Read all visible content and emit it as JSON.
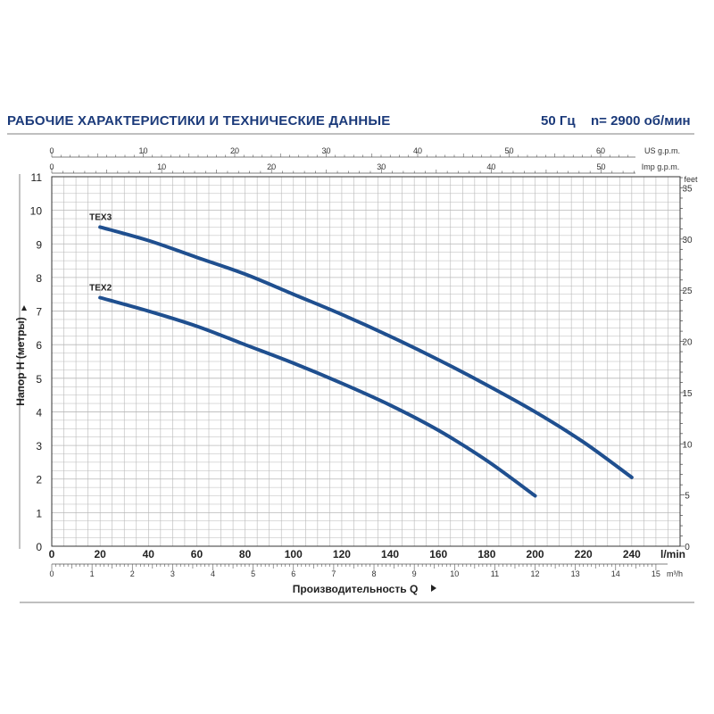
{
  "header": {
    "title": "РАБОЧИЕ ХАРАКТЕРИСТИКИ И ТЕХНИЧЕСКИЕ ДАННЫЕ",
    "frequency": "50 Гц",
    "speed": "n= 2900 об/мин"
  },
  "colors": {
    "curve": "#1f4f8f",
    "grid": "#b8b8b8",
    "frame": "#333333"
  },
  "chart_data": {
    "type": "line",
    "xlabel": "Производительность Q",
    "ylabel": "Напор H (метры)",
    "x_unit": "l/min",
    "xlim": [
      0,
      260
    ],
    "ylim": [
      0,
      11
    ],
    "grid": true,
    "series": [
      {
        "name": "TEX3",
        "x": [
          20,
          40,
          60,
          80,
          100,
          120,
          140,
          160,
          180,
          200,
          220,
          240
        ],
        "y": [
          9.5,
          9.1,
          8.6,
          8.1,
          7.5,
          6.9,
          6.25,
          5.55,
          4.8,
          4.0,
          3.1,
          2.05
        ]
      },
      {
        "name": "TEX2",
        "x": [
          20,
          40,
          60,
          80,
          100,
          120,
          140,
          160,
          180,
          200
        ],
        "y": [
          7.4,
          7.0,
          6.55,
          6.0,
          5.45,
          4.85,
          4.2,
          3.45,
          2.55,
          1.5
        ]
      }
    ],
    "axes": {
      "left": {
        "label": "Напор H (метры)",
        "ticks": [
          "0",
          "1",
          "2",
          "3",
          "4",
          "5",
          "6",
          "7",
          "8",
          "9",
          "10",
          "11"
        ],
        "values": [
          0,
          1,
          2,
          3,
          4,
          5,
          6,
          7,
          8,
          9,
          10,
          11
        ]
      },
      "right": {
        "unit": "feet",
        "ticks": [
          "0",
          "5",
          "10",
          "15",
          "20",
          "25",
          "30",
          "35"
        ],
        "values": [
          0,
          5,
          10,
          15,
          20,
          25,
          30,
          35
        ]
      },
      "bottom": {
        "unit": "l/min",
        "ticks": [
          "0",
          "20",
          "40",
          "60",
          "80",
          "100",
          "120",
          "140",
          "160",
          "180",
          "200",
          "220",
          "240"
        ],
        "values": [
          0,
          20,
          40,
          60,
          80,
          100,
          120,
          140,
          160,
          180,
          200,
          220,
          240
        ]
      },
      "bottom2": {
        "unit": "m³/h",
        "ticks": [
          "0",
          "1",
          "2",
          "3",
          "4",
          "5",
          "6",
          "7",
          "8",
          "9",
          "10",
          "11",
          "12",
          "13",
          "14",
          "15"
        ],
        "values": [
          0,
          1,
          2,
          3,
          4,
          5,
          6,
          7,
          8,
          9,
          10,
          11,
          12,
          13,
          14,
          15
        ]
      },
      "top1": {
        "unit": "US g.p.m.",
        "ticks": [
          "0",
          "10",
          "20",
          "30",
          "40",
          "50",
          "60"
        ],
        "values": [
          0,
          10,
          20,
          30,
          40,
          50,
          60
        ]
      },
      "top2": {
        "unit": "Imp g.p.m.",
        "ticks": [
          "0",
          "10",
          "20",
          "30",
          "40",
          "50"
        ],
        "values": [
          0,
          10,
          20,
          30,
          40,
          50
        ]
      }
    }
  }
}
